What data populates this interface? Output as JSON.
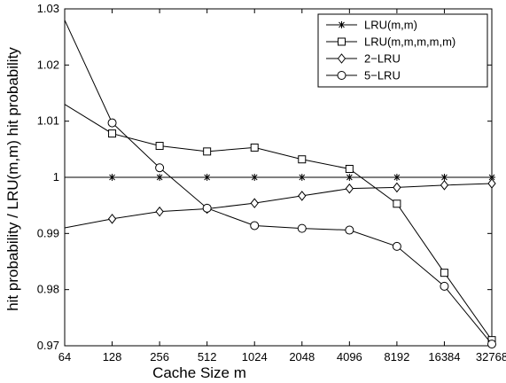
{
  "chart_data": {
    "type": "line",
    "xlabel": "Cache Size m",
    "ylabel": "hit probability / LRU(m,m) hit probability",
    "x": [
      "64",
      "128",
      "256",
      "512",
      "1024",
      "2048",
      "4096",
      "8192",
      "16384",
      "32768"
    ],
    "ylim": [
      0.97,
      1.03
    ],
    "yticks": [
      "0.97",
      "0.98",
      "0.99",
      "1",
      "1.01",
      "1.02",
      "1.03"
    ],
    "grid": false,
    "legend_position": "top-right",
    "series": [
      {
        "name": "LRU(m,m)",
        "marker": "star",
        "values": [
          null,
          1.0,
          1.0,
          1.0,
          1.0,
          1.0,
          1.0,
          1.0,
          1.0,
          1.0
        ],
        "line_start": 1.0
      },
      {
        "name": "LRU(m,m,m,m,m)",
        "marker": "square",
        "values": [
          null,
          1.0078,
          1.0056,
          1.0046,
          1.0053,
          1.0032,
          1.0015,
          0.9953,
          0.983,
          0.971
        ],
        "line_start": 1.013
      },
      {
        "name": "2−LRU",
        "marker": "diamond",
        "values": [
          null,
          0.9926,
          0.9939,
          0.9944,
          0.9954,
          0.9967,
          0.998,
          0.9982,
          0.9986,
          0.9989
        ],
        "line_start": 0.991
      },
      {
        "name": "5−LRU",
        "marker": "circle",
        "values": [
          null,
          1.0097,
          1.0017,
          0.9945,
          0.9914,
          0.9909,
          0.9906,
          0.9877,
          0.9806,
          0.9703
        ],
        "line_start": 1.028
      }
    ]
  }
}
